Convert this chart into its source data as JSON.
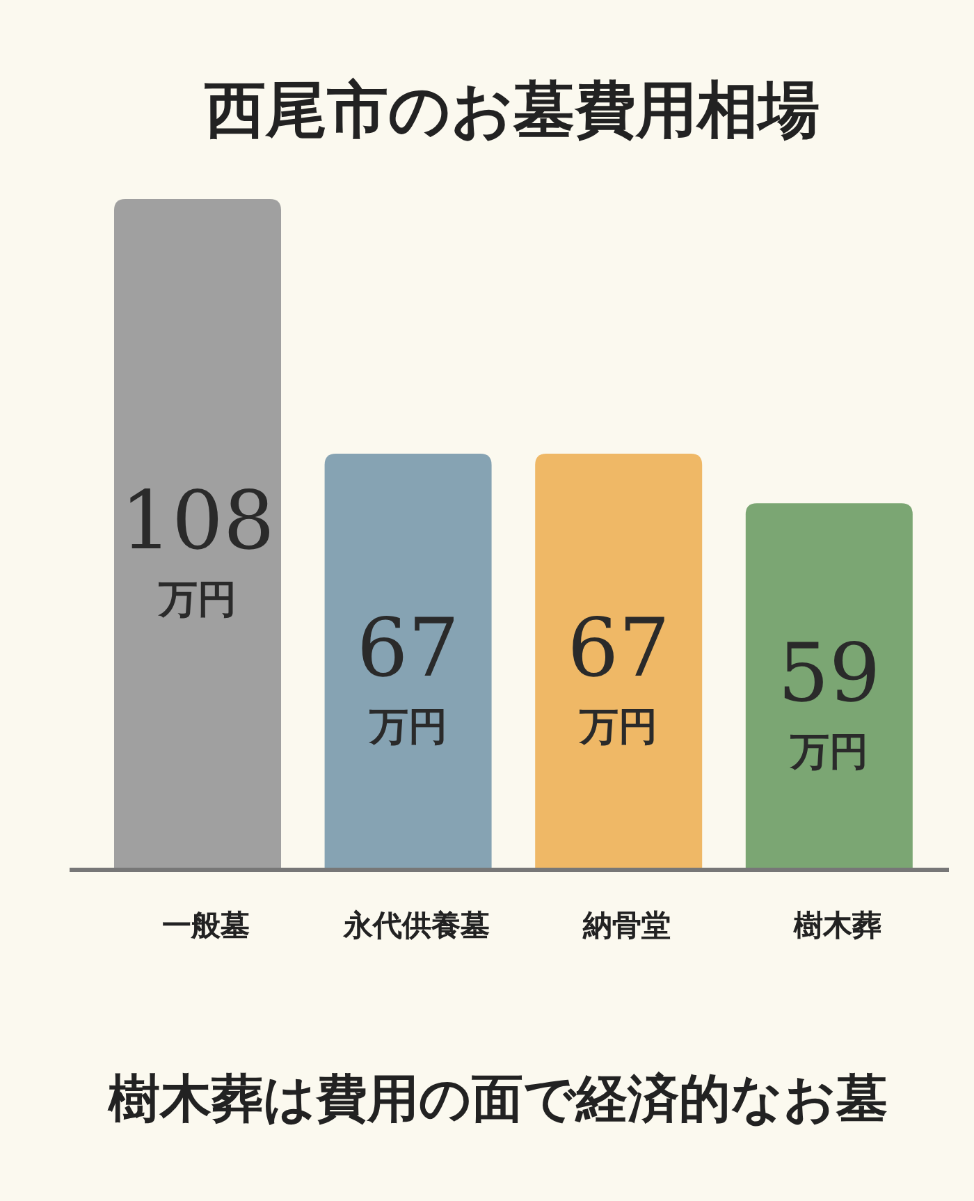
{
  "chart_data": {
    "type": "bar",
    "title": "西尾市のお墓費用相場",
    "categories": [
      "一般墓",
      "永代供養墓",
      "納骨堂",
      "樹木葬"
    ],
    "values": [
      108,
      67,
      67,
      59
    ],
    "colors": [
      "#a0a0a0",
      "#86a3b3",
      "#efb866",
      "#7ba673"
    ],
    "value_labels": [
      "108万円",
      "67万円",
      "67万円",
      "59万円"
    ],
    "annotations": [
      "樹木葬は費用の面で経済的なお墓"
    ]
  }
}
